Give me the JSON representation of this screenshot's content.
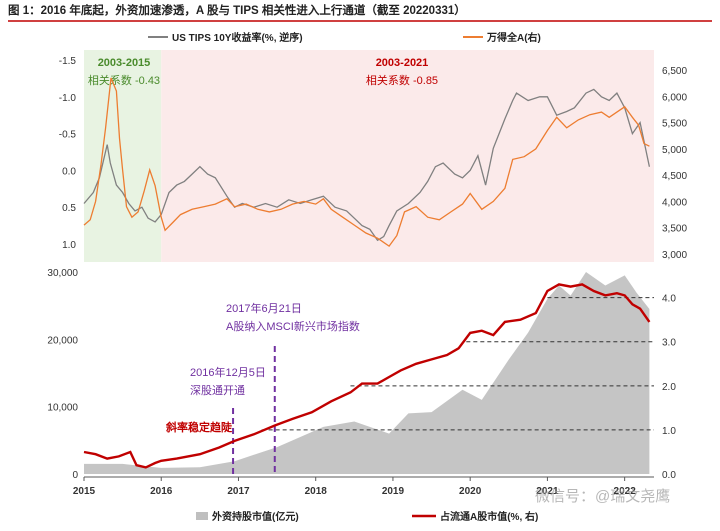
{
  "title": "图 1：2016 年底起，外资加速渗透，A 股与 TIPS 相关性进入上行通道（截至 20220331）",
  "watermark": "微信号：@瑞文尧鹰",
  "chart_data": [
    {
      "type": "line",
      "legend": [
        {
          "name": "US TIPS 10Y收益率(%, 逆序)",
          "color": "#808080"
        },
        {
          "name": "万得全A(右)",
          "color": "#ed7d31"
        }
      ],
      "x_ticks": [],
      "y_left": {
        "ticks": [
          "-1.5",
          "-1.0",
          "-0.5",
          "0.0",
          "0.5",
          "1.0"
        ],
        "values": [
          -1.5,
          -1.0,
          -0.5,
          0.0,
          0.5,
          1.0
        ],
        "range": [
          -1.5,
          1.0
        ],
        "reversed": true
      },
      "y_right": {
        "ticks": [
          "6,500",
          "6,000",
          "5,500",
          "5,000",
          "4,500",
          "4,000",
          "3,500",
          "3,000"
        ],
        "values": [
          6500,
          6000,
          5500,
          5000,
          4500,
          4000,
          3500,
          3000
        ],
        "range": [
          3000,
          6500
        ]
      },
      "shaded_periods": [
        {
          "label": "2003-2015",
          "note": "相关系数 -0.43",
          "from": 2015.0,
          "to": 2016.0,
          "fill": "#e8f3e2",
          "color": "#4a8b2c"
        },
        {
          "label": "2003-2021",
          "note": "相关系数 -0.85",
          "from": 2016.0,
          "to": 2022.38,
          "fill": "#fbeaea",
          "color": "#c00000"
        }
      ],
      "series": [
        {
          "name": "US TIPS 10Y收益率(%, 逆序)",
          "axis": "left",
          "color": "#808080",
          "points": [
            [
              2015.0,
              0.45
            ],
            [
              2015.12,
              0.3
            ],
            [
              2015.2,
              0.1
            ],
            [
              2015.3,
              -0.35
            ],
            [
              2015.34,
              -0.1
            ],
            [
              2015.42,
              0.2
            ],
            [
              2015.5,
              0.3
            ],
            [
              2015.58,
              0.45
            ],
            [
              2015.66,
              0.55
            ],
            [
              2015.75,
              0.5
            ],
            [
              2015.83,
              0.65
            ],
            [
              2015.92,
              0.7
            ],
            [
              2016.0,
              0.6
            ],
            [
              2016.1,
              0.3
            ],
            [
              2016.2,
              0.2
            ],
            [
              2016.3,
              0.15
            ],
            [
              2016.4,
              0.05
            ],
            [
              2016.5,
              -0.05
            ],
            [
              2016.6,
              0.05
            ],
            [
              2016.7,
              0.1
            ],
            [
              2016.85,
              0.35
            ],
            [
              2016.95,
              0.5
            ],
            [
              2017.05,
              0.45
            ],
            [
              2017.2,
              0.5
            ],
            [
              2017.35,
              0.45
            ],
            [
              2017.5,
              0.5
            ],
            [
              2017.65,
              0.4
            ],
            [
              2017.8,
              0.45
            ],
            [
              2017.95,
              0.4
            ],
            [
              2018.1,
              0.35
            ],
            [
              2018.25,
              0.5
            ],
            [
              2018.4,
              0.55
            ],
            [
              2018.5,
              0.65
            ],
            [
              2018.6,
              0.75
            ],
            [
              2018.7,
              0.8
            ],
            [
              2018.8,
              0.95
            ],
            [
              2018.88,
              0.9
            ],
            [
              2018.95,
              0.75
            ],
            [
              2019.05,
              0.55
            ],
            [
              2019.2,
              0.45
            ],
            [
              2019.35,
              0.3
            ],
            [
              2019.45,
              0.15
            ],
            [
              2019.55,
              -0.05
            ],
            [
              2019.65,
              -0.1
            ],
            [
              2019.8,
              0.05
            ],
            [
              2019.9,
              0.1
            ],
            [
              2020.0,
              0.0
            ],
            [
              2020.1,
              -0.2
            ],
            [
              2020.2,
              0.2
            ],
            [
              2020.3,
              -0.3
            ],
            [
              2020.45,
              -0.7
            ],
            [
              2020.55,
              -0.95
            ],
            [
              2020.6,
              -1.05
            ],
            [
              2020.75,
              -0.95
            ],
            [
              2020.9,
              -1.0
            ],
            [
              2021.0,
              -1.0
            ],
            [
              2021.12,
              -0.75
            ],
            [
              2021.25,
              -0.8
            ],
            [
              2021.35,
              -0.85
            ],
            [
              2021.5,
              -1.05
            ],
            [
              2021.6,
              -1.1
            ],
            [
              2021.7,
              -1.0
            ],
            [
              2021.8,
              -0.95
            ],
            [
              2021.9,
              -1.05
            ],
            [
              2022.0,
              -0.85
            ],
            [
              2022.1,
              -0.5
            ],
            [
              2022.2,
              -0.65
            ],
            [
              2022.27,
              -0.3
            ],
            [
              2022.32,
              -0.05
            ]
          ]
        },
        {
          "name": "万得全A(右)",
          "axis": "right",
          "color": "#ed7d31",
          "points": [
            [
              2015.0,
              3550
            ],
            [
              2015.08,
              3650
            ],
            [
              2015.15,
              4000
            ],
            [
              2015.22,
              4700
            ],
            [
              2015.28,
              5400
            ],
            [
              2015.35,
              6350
            ],
            [
              2015.42,
              6100
            ],
            [
              2015.46,
              5200
            ],
            [
              2015.5,
              4600
            ],
            [
              2015.55,
              3900
            ],
            [
              2015.62,
              3700
            ],
            [
              2015.7,
              3800
            ],
            [
              2015.78,
              4200
            ],
            [
              2015.85,
              4600
            ],
            [
              2015.92,
              4300
            ],
            [
              2016.0,
              3700
            ],
            [
              2016.05,
              3450
            ],
            [
              2016.15,
              3600
            ],
            [
              2016.25,
              3750
            ],
            [
              2016.4,
              3850
            ],
            [
              2016.55,
              3900
            ],
            [
              2016.7,
              3950
            ],
            [
              2016.85,
              4050
            ],
            [
              2016.95,
              3900
            ],
            [
              2017.1,
              3950
            ],
            [
              2017.25,
              3850
            ],
            [
              2017.4,
              3800
            ],
            [
              2017.55,
              3850
            ],
            [
              2017.7,
              3950
            ],
            [
              2017.85,
              4000
            ],
            [
              2018.0,
              3950
            ],
            [
              2018.1,
              4050
            ],
            [
              2018.2,
              3850
            ],
            [
              2018.35,
              3700
            ],
            [
              2018.5,
              3550
            ],
            [
              2018.65,
              3400
            ],
            [
              2018.8,
              3300
            ],
            [
              2018.95,
              3150
            ],
            [
              2019.05,
              3350
            ],
            [
              2019.15,
              3800
            ],
            [
              2019.3,
              3900
            ],
            [
              2019.45,
              3700
            ],
            [
              2019.6,
              3650
            ],
            [
              2019.75,
              3800
            ],
            [
              2019.9,
              3950
            ],
            [
              2020.0,
              4150
            ],
            [
              2020.15,
              3850
            ],
            [
              2020.3,
              4000
            ],
            [
              2020.45,
              4250
            ],
            [
              2020.55,
              4800
            ],
            [
              2020.7,
              4850
            ],
            [
              2020.85,
              5000
            ],
            [
              2021.0,
              5350
            ],
            [
              2021.12,
              5600
            ],
            [
              2021.25,
              5400
            ],
            [
              2021.4,
              5550
            ],
            [
              2021.55,
              5650
            ],
            [
              2021.7,
              5700
            ],
            [
              2021.8,
              5600
            ],
            [
              2021.9,
              5700
            ],
            [
              2022.0,
              5800
            ],
            [
              2022.1,
              5600
            ],
            [
              2022.18,
              5450
            ],
            [
              2022.25,
              5100
            ],
            [
              2022.32,
              5050
            ]
          ]
        }
      ]
    },
    {
      "type": "area",
      "x_ticks": [
        "2015",
        "2016",
        "2017",
        "2018",
        "2019",
        "2020",
        "2021",
        "2022"
      ],
      "x_values": [
        2015,
        2016,
        2017,
        2018,
        2019,
        2020,
        2021,
        2022
      ],
      "y_left": {
        "ticks": [
          "0",
          "10,000",
          "20,000",
          "30,000"
        ],
        "values": [
          0,
          10000,
          20000,
          30000
        ],
        "range": [
          0,
          30000
        ]
      },
      "y_right": {
        "ticks": [
          "0.0",
          "1.0",
          "2.0",
          "3.0",
          "4.0"
        ],
        "values": [
          0,
          1,
          2,
          3,
          4
        ],
        "range": [
          0,
          4.4
        ]
      },
      "legend": [
        {
          "name": "外资持股市值(亿元)",
          "color": "#bfbfbf"
        },
        {
          "name": "占流通A股市值(%, 右)",
          "color": "#c00000"
        }
      ],
      "reference_lines": [
        1.0,
        2.0,
        3.0,
        4.0
      ],
      "events": [
        {
          "label": "2016年12月5日",
          "detail": "深股通开通",
          "x": 2016.93,
          "color": "#7030a0"
        },
        {
          "label": "2017年6月21日",
          "detail": "A股纳入MSCI新兴市场指数",
          "x": 2017.47,
          "color": "#7030a0"
        }
      ],
      "note": "斜率稳定趋陡",
      "series": [
        {
          "name": "外资持股市值(亿元)",
          "axis": "left",
          "color": "#bfbfbf",
          "points": [
            [
              2015.0,
              1500
            ],
            [
              2015.5,
              1500
            ],
            [
              2015.83,
              1100
            ],
            [
              2016.0,
              900
            ],
            [
              2016.5,
              1000
            ],
            [
              2016.95,
              1900
            ],
            [
              2017.5,
              4000
            ],
            [
              2017.9,
              6000
            ],
            [
              2018.1,
              7000
            ],
            [
              2018.5,
              7800
            ],
            [
              2018.95,
              6000
            ],
            [
              2019.2,
              9000
            ],
            [
              2019.5,
              9200
            ],
            [
              2019.9,
              12500
            ],
            [
              2020.15,
              11000
            ],
            [
              2020.5,
              17000
            ],
            [
              2020.75,
              21000
            ],
            [
              2021.0,
              26000
            ],
            [
              2021.15,
              28000
            ],
            [
              2021.3,
              26500
            ],
            [
              2021.5,
              30000
            ],
            [
              2021.75,
              28000
            ],
            [
              2022.0,
              29500
            ],
            [
              2022.15,
              27000
            ],
            [
              2022.32,
              24500
            ]
          ]
        },
        {
          "name": "占流通A股市值(%, 右)",
          "axis": "right",
          "color": "#c00000",
          "points": [
            [
              2015.0,
              0.5
            ],
            [
              2015.15,
              0.45
            ],
            [
              2015.3,
              0.35
            ],
            [
              2015.45,
              0.4
            ],
            [
              2015.6,
              0.5
            ],
            [
              2015.68,
              0.2
            ],
            [
              2015.8,
              0.15
            ],
            [
              2015.92,
              0.25
            ],
            [
              2016.0,
              0.3
            ],
            [
              2016.2,
              0.35
            ],
            [
              2016.5,
              0.45
            ],
            [
              2016.75,
              0.6
            ],
            [
              2016.95,
              0.75
            ],
            [
              2017.2,
              0.9
            ],
            [
              2017.47,
              1.1
            ],
            [
              2017.7,
              1.25
            ],
            [
              2017.95,
              1.4
            ],
            [
              2018.2,
              1.65
            ],
            [
              2018.45,
              1.85
            ],
            [
              2018.6,
              2.05
            ],
            [
              2018.8,
              2.05
            ],
            [
              2018.95,
              2.2
            ],
            [
              2019.1,
              2.35
            ],
            [
              2019.3,
              2.5
            ],
            [
              2019.5,
              2.6
            ],
            [
              2019.7,
              2.7
            ],
            [
              2019.85,
              2.85
            ],
            [
              2020.0,
              3.2
            ],
            [
              2020.15,
              3.25
            ],
            [
              2020.3,
              3.15
            ],
            [
              2020.45,
              3.45
            ],
            [
              2020.65,
              3.5
            ],
            [
              2020.85,
              3.65
            ],
            [
              2021.0,
              4.15
            ],
            [
              2021.15,
              4.3
            ],
            [
              2021.3,
              4.25
            ],
            [
              2021.45,
              4.3
            ],
            [
              2021.6,
              4.15
            ],
            [
              2021.75,
              4.05
            ],
            [
              2021.9,
              4.1
            ],
            [
              2022.0,
              4.05
            ],
            [
              2022.1,
              3.85
            ],
            [
              2022.2,
              3.75
            ],
            [
              2022.32,
              3.45
            ]
          ]
        }
      ]
    }
  ]
}
